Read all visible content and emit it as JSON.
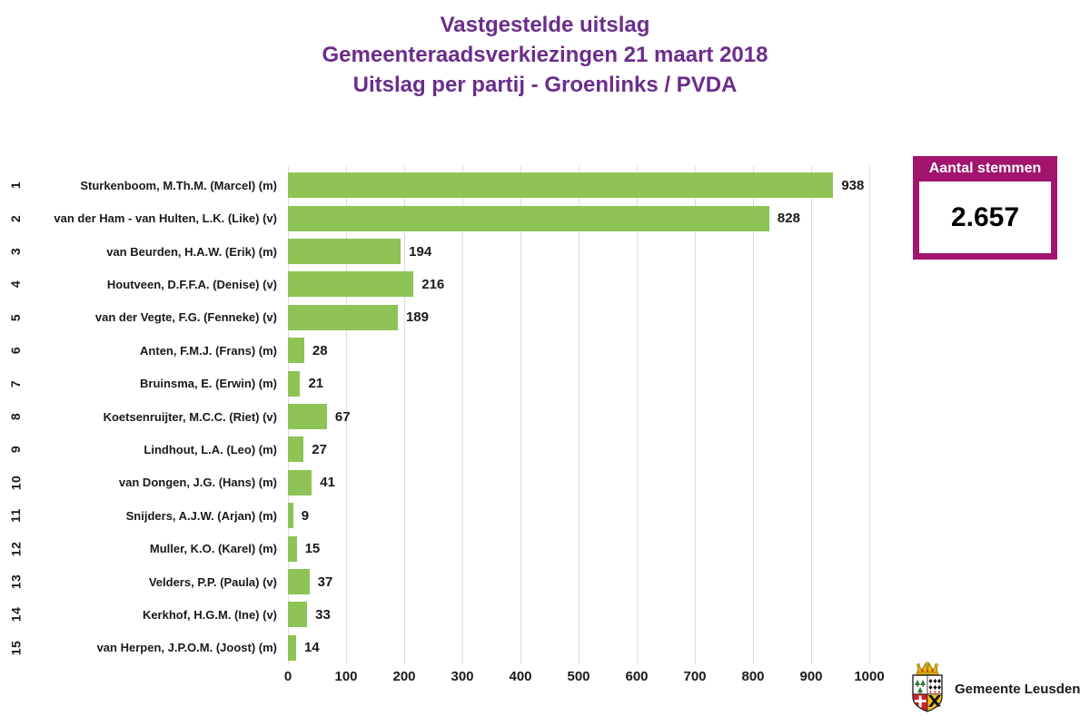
{
  "title": {
    "line1": "Vastgestelde uitslag",
    "line2": "Gemeenteraadsverkiezingen 21 maart 2018",
    "line3": "Uitslag per partij - Groenlinks / PVDA"
  },
  "chart_data": {
    "type": "bar",
    "orientation": "horizontal",
    "positions": [
      1,
      2,
      3,
      4,
      5,
      6,
      7,
      8,
      9,
      10,
      11,
      12,
      13,
      14,
      15
    ],
    "categories": [
      "Sturkenboom, M.Th.M. (Marcel) (m)",
      "van der Ham - van Hulten, L.K. (Like) (v)",
      "van Beurden, H.A.W. (Erik) (m)",
      "Houtveen, D.F.F.A. (Denise) (v)",
      "van der Vegte, F.G. (Fenneke) (v)",
      "Anten, F.M.J. (Frans) (m)",
      "Bruinsma, E. (Erwin) (m)",
      "Koetsenruijter, M.C.C. (Riet) (v)",
      "Lindhout, L.A. (Leo) (m)",
      "van Dongen, J.G. (Hans) (m)",
      "Snijders, A.J.W. (Arjan) (m)",
      "Muller, K.O. (Karel) (m)",
      "Velders, P.P. (Paula) (v)",
      "Kerkhof, H.G.M. (Ine) (v)",
      "van Herpen, J.P.O.M. (Joost) (m)"
    ],
    "values": [
      938,
      828,
      194,
      216,
      189,
      28,
      21,
      67,
      27,
      41,
      9,
      15,
      37,
      33,
      14
    ],
    "xlim": [
      0,
      1000
    ],
    "x_ticks": [
      0,
      100,
      200,
      300,
      400,
      500,
      600,
      700,
      800,
      900,
      1000
    ],
    "grid": true,
    "legend": false,
    "xlabel": "",
    "ylabel": ""
  },
  "summary_box": {
    "label": "Aantal stemmen",
    "value": "2.657"
  },
  "footer": {
    "logo_text": "Gemeente Leusden"
  },
  "colors": {
    "title_purple": "#6b2d8b",
    "bar_green": "#8dc455",
    "accent_magenta": "#a2146d",
    "gridline": "#dcdcdc"
  }
}
